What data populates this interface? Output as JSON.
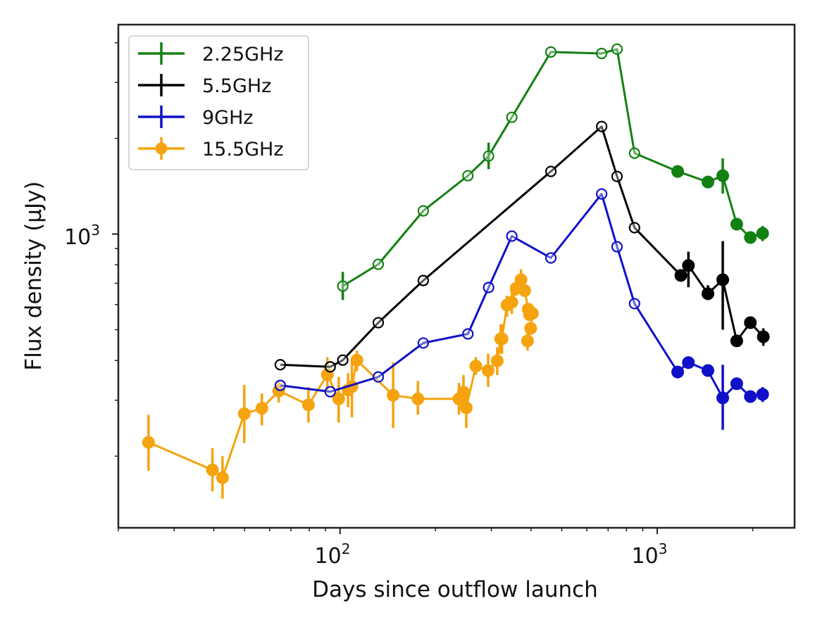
{
  "chart_data": {
    "type": "line",
    "title": "",
    "xlabel": "Days since outflow launch",
    "ylabel": "Flux density (μJy)",
    "xscale": "log",
    "yscale": "log",
    "xlim": [
      20,
      2710
    ],
    "ylim": [
      119,
      4560
    ],
    "x_major_ticks": [
      {
        "value": 100,
        "base": "10",
        "exp": "2"
      },
      {
        "value": 1000,
        "base": "10",
        "exp": "3"
      }
    ],
    "y_major_ticks": [
      {
        "value": 1000,
        "base": "10",
        "exp": "3"
      }
    ],
    "grid": false,
    "legend_position": "top-left",
    "series": [
      {
        "name": "2.25GHz",
        "color": "#138013",
        "points": [
          {
            "x": 102,
            "y": 686,
            "err": [
              620,
              760
            ],
            "filled": false
          },
          {
            "x": 132,
            "y": 803,
            "filled": false
          },
          {
            "x": 183,
            "y": 1183,
            "filled": false
          },
          {
            "x": 253,
            "y": 1526,
            "filled": false
          },
          {
            "x": 294,
            "y": 1760,
            "err": [
              1600,
              1940
            ],
            "filled": false
          },
          {
            "x": 348,
            "y": 2330,
            "filled": false
          },
          {
            "x": 462,
            "y": 3740,
            "filled": false
          },
          {
            "x": 668,
            "y": 3700,
            "filled": false
          },
          {
            "x": 747,
            "y": 3818,
            "filled": false
          },
          {
            "x": 848,
            "y": 1797,
            "filled": false
          },
          {
            "x": 1160,
            "y": 1574,
            "filled": true
          },
          {
            "x": 1445,
            "y": 1458,
            "filled": true
          },
          {
            "x": 1609,
            "y": 1526,
            "err": [
              1340,
              1730
            ],
            "filled": true
          },
          {
            "x": 1781,
            "y": 1074,
            "filled": true
          },
          {
            "x": 1966,
            "y": 975,
            "filled": true
          },
          {
            "x": 2149,
            "y": 1005,
            "err": [
              950,
              1060
            ],
            "filled": true
          }
        ]
      },
      {
        "name": "5.5GHz",
        "color": "#000000",
        "points": [
          {
            "x": 64.8,
            "y": 388,
            "filled": false
          },
          {
            "x": 93.1,
            "y": 382,
            "filled": false
          },
          {
            "x": 102,
            "y": 401,
            "filled": false
          },
          {
            "x": 132,
            "y": 526,
            "filled": false
          },
          {
            "x": 183,
            "y": 714,
            "filled": false
          },
          {
            "x": 462,
            "y": 1574,
            "filled": false
          },
          {
            "x": 668,
            "y": 2180,
            "filled": false
          },
          {
            "x": 747,
            "y": 1518,
            "filled": false
          },
          {
            "x": 848,
            "y": 1047,
            "filled": false
          },
          {
            "x": 1187,
            "y": 741,
            "filled": true
          },
          {
            "x": 1254,
            "y": 796,
            "err": [
              680,
              880
            ],
            "filled": true
          },
          {
            "x": 1445,
            "y": 649,
            "err": [
              620,
              690
            ],
            "filled": true
          },
          {
            "x": 1609,
            "y": 718,
            "err": [
              500,
              950
            ],
            "filled": true
          },
          {
            "x": 1781,
            "y": 461,
            "filled": true
          },
          {
            "x": 1966,
            "y": 526,
            "filled": true
          },
          {
            "x": 2160,
            "y": 475,
            "err": [
              445,
              505
            ],
            "filled": true
          }
        ]
      },
      {
        "name": "9GHz",
        "color": "#1010c8",
        "points": [
          {
            "x": 64.8,
            "y": 334,
            "filled": false
          },
          {
            "x": 93.1,
            "y": 319,
            "filled": false
          },
          {
            "x": 132,
            "y": 355,
            "filled": false
          },
          {
            "x": 183,
            "y": 454,
            "filled": false
          },
          {
            "x": 253,
            "y": 485,
            "filled": false
          },
          {
            "x": 294,
            "y": 679,
            "filled": false
          },
          {
            "x": 348,
            "y": 985,
            "filled": false
          },
          {
            "x": 462,
            "y": 841,
            "filled": false
          },
          {
            "x": 668,
            "y": 1337,
            "filled": false
          },
          {
            "x": 747,
            "y": 912,
            "filled": false
          },
          {
            "x": 848,
            "y": 604,
            "filled": false
          },
          {
            "x": 1160,
            "y": 368,
            "filled": true
          },
          {
            "x": 1254,
            "y": 394,
            "filled": true
          },
          {
            "x": 1445,
            "y": 372,
            "filled": true
          },
          {
            "x": 1609,
            "y": 305,
            "err": [
              242,
              388
            ],
            "filled": true
          },
          {
            "x": 1781,
            "y": 338,
            "filled": true
          },
          {
            "x": 1966,
            "y": 308,
            "filled": true
          },
          {
            "x": 2149,
            "y": 313,
            "err": [
              296,
              330
            ],
            "filled": true
          }
        ]
      },
      {
        "name": "15.5GHz",
        "color": "#f5a30f",
        "points": [
          {
            "x": 24.9,
            "y": 221,
            "err": [
              180,
              270
            ],
            "filled": true
          },
          {
            "x": 39.6,
            "y": 181,
            "err": [
              155,
              212
            ],
            "filled": true
          },
          {
            "x": 42.6,
            "y": 171,
            "err": [
              147,
              200
            ],
            "filled": true
          },
          {
            "x": 49.9,
            "y": 272,
            "err": [
              220,
              335
            ],
            "filled": true
          },
          {
            "x": 56.7,
            "y": 283,
            "err": [
              250,
              315
            ],
            "filled": true
          },
          {
            "x": 64.1,
            "y": 321,
            "err": [
              295,
              345
            ],
            "filled": true
          },
          {
            "x": 79.5,
            "y": 290,
            "err": [
              255,
              330
            ],
            "filled": true
          },
          {
            "x": 91.2,
            "y": 361,
            "err": [
              320,
              410
            ],
            "filled": true
          },
          {
            "x": 99,
            "y": 303,
            "err": [
              255,
              355
            ],
            "filled": true
          },
          {
            "x": 106,
            "y": 323,
            "err": [
              285,
              365
            ],
            "filled": true
          },
          {
            "x": 109,
            "y": 331,
            "err": [
              265,
              400
            ],
            "filled": true
          },
          {
            "x": 113,
            "y": 401,
            "err": [
              370,
              430
            ],
            "filled": true
          },
          {
            "x": 147,
            "y": 311,
            "err": [
              245,
              395
            ],
            "filled": true
          },
          {
            "x": 176,
            "y": 303,
            "err": [
              270,
              345
            ],
            "filled": true
          },
          {
            "x": 237,
            "y": 303,
            "err": [
              270,
              340
            ],
            "filled": true
          },
          {
            "x": 245,
            "y": 318,
            "err": [
              275,
              360
            ],
            "filled": true
          },
          {
            "x": 250,
            "y": 284,
            "err": [
              245,
              320
            ],
            "filled": true
          },
          {
            "x": 268,
            "y": 384,
            "err": [
              360,
              410
            ],
            "filled": true
          },
          {
            "x": 293,
            "y": 372,
            "err": [
              330,
              420
            ],
            "filled": true
          },
          {
            "x": 313,
            "y": 399,
            "err": [
              360,
              440
            ],
            "filled": true
          },
          {
            "x": 321,
            "y": 468,
            "err": [
              420,
              520
            ],
            "filled": true
          },
          {
            "x": 324,
            "y": 468,
            "err": [
              420,
              520
            ],
            "filled": true
          },
          {
            "x": 336,
            "y": 598,
            "err": [
              550,
              640
            ],
            "filled": true
          },
          {
            "x": 348,
            "y": 610,
            "err": [
              560,
              660
            ],
            "filled": true
          },
          {
            "x": 359,
            "y": 675,
            "err": [
              640,
              710
            ],
            "filled": true
          },
          {
            "x": 372,
            "y": 718,
            "err": [
              670,
              775
            ],
            "filled": true
          },
          {
            "x": 382,
            "y": 664,
            "filled": true
          },
          {
            "x": 392,
            "y": 580,
            "filled": true
          },
          {
            "x": 396,
            "y": 557,
            "filled": true
          },
          {
            "x": 404,
            "y": 563,
            "filled": true
          },
          {
            "x": 399,
            "y": 505,
            "filled": true
          },
          {
            "x": 390,
            "y": 461,
            "err": [
              430,
              490
            ],
            "filled": true
          }
        ]
      }
    ]
  }
}
